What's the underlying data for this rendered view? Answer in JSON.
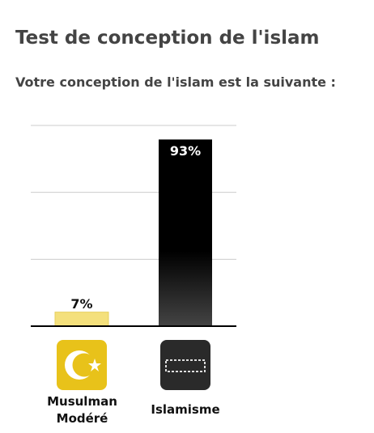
{
  "title": "Test de conception de l'islam",
  "subtitle": "Votre conception de l'islam est la suivante :",
  "chart_data": {
    "type": "bar",
    "categories": [
      "Musulman Modéré",
      "Islamisme"
    ],
    "values": [
      7,
      93
    ],
    "value_labels": [
      "7%",
      "93%"
    ],
    "colors": [
      "#f4e07c",
      "#000000"
    ],
    "ylim": [
      0,
      100
    ],
    "yticks": [
      33.3,
      66.7,
      100
    ],
    "grid": true
  }
}
